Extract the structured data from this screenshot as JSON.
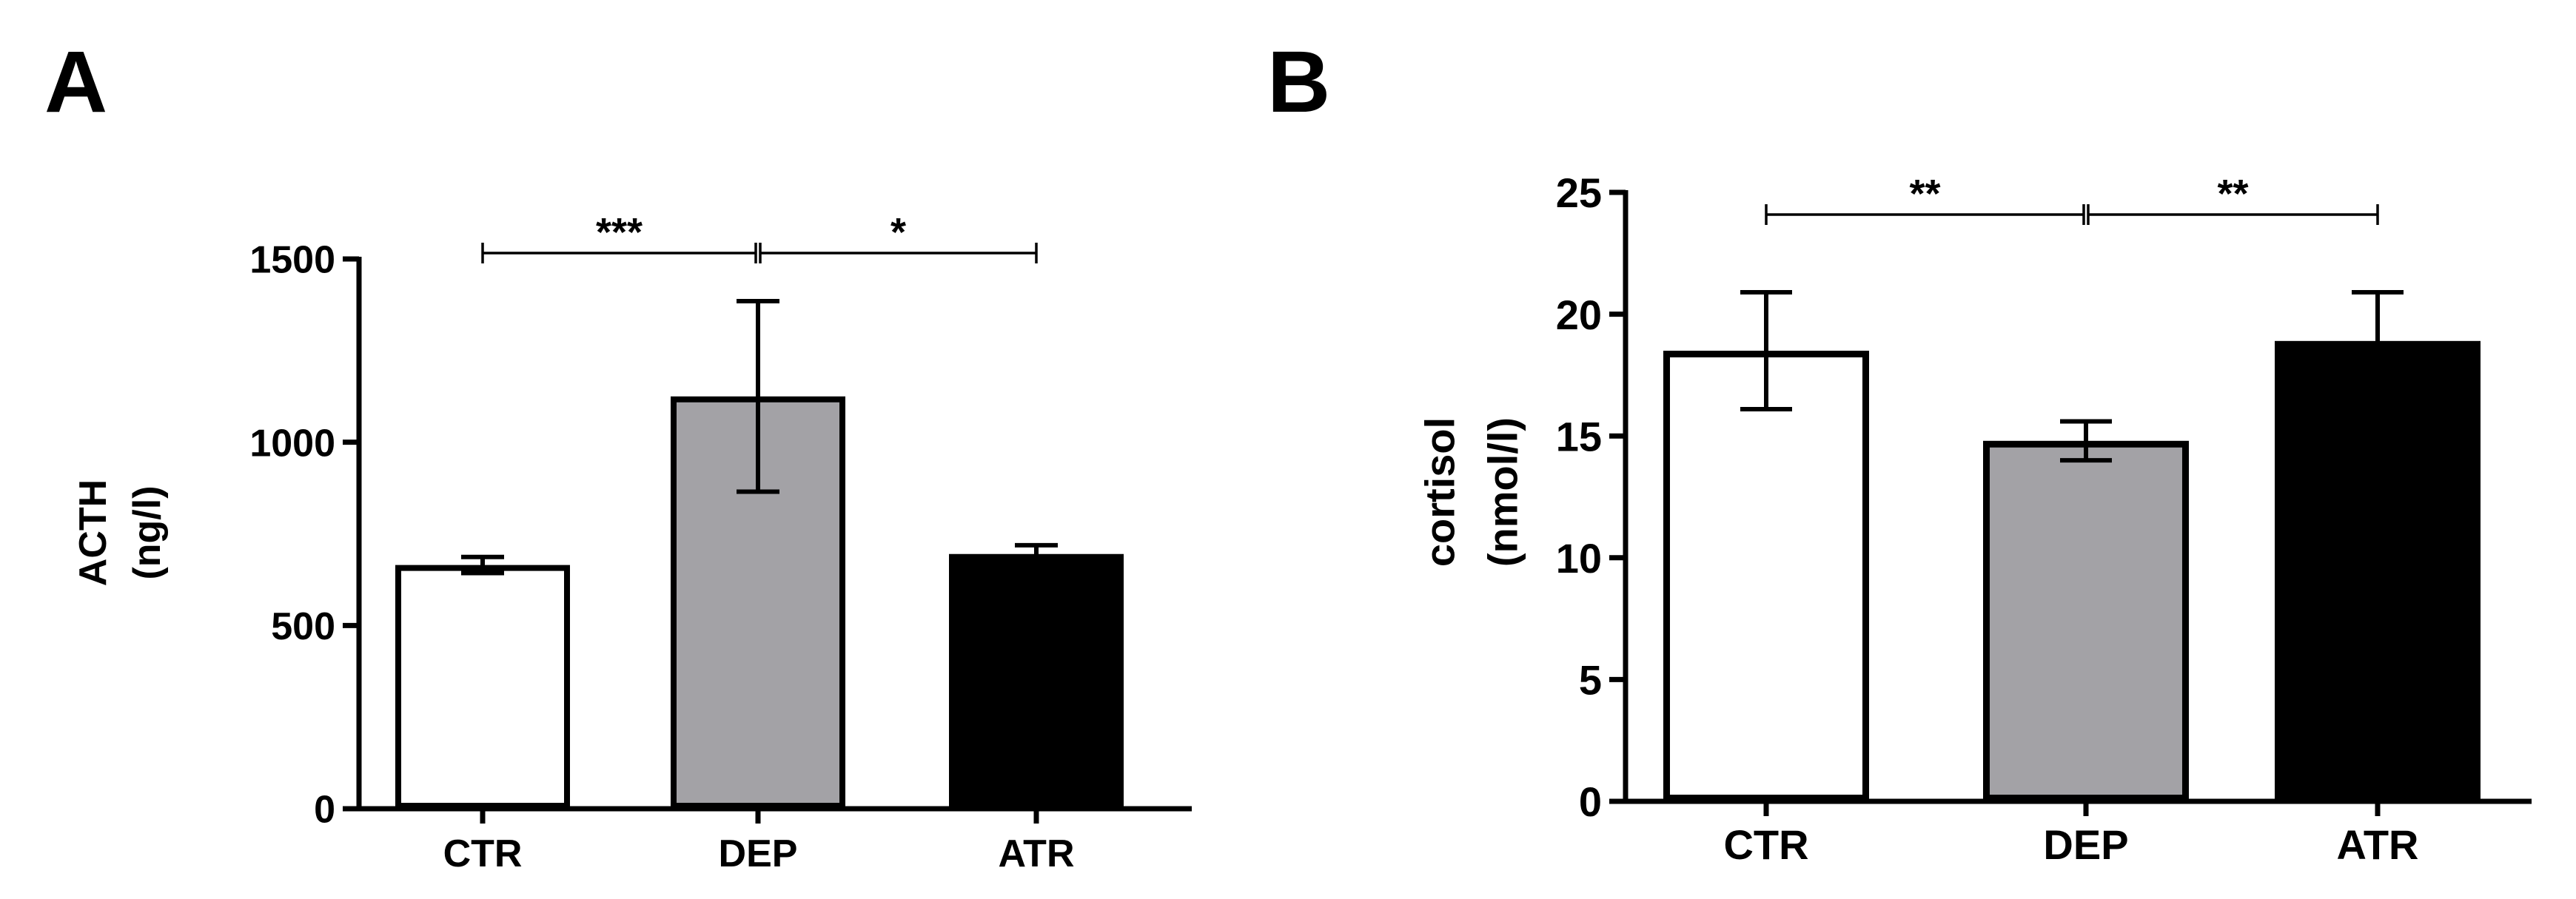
{
  "panels": [
    {
      "letter": "A"
    },
    {
      "letter": "B"
    }
  ],
  "chart_data": [
    {
      "type": "bar",
      "title": "",
      "xlabel": "",
      "ylabel_line1": "ACTH",
      "ylabel_line2": "(ng/l)",
      "categories": [
        "CTR",
        "DEP",
        "ATR"
      ],
      "values": [
        665,
        1125,
        695
      ],
      "errors": [
        22,
        260,
        24
      ],
      "colors": [
        "#ffffff",
        "#a3a2a6",
        "#000000"
      ],
      "ylim": [
        0,
        1500
      ],
      "yticks": [
        0,
        500,
        1000,
        1500
      ],
      "grid": false,
      "significance": [
        {
          "from": 0,
          "to": 1,
          "label": "***"
        },
        {
          "from": 1,
          "to": 2,
          "label": "*"
        }
      ]
    },
    {
      "type": "bar",
      "title": "",
      "xlabel": "",
      "ylabel_line1": "cortisol",
      "ylabel_line2": "(nmol/l)",
      "categories": [
        "CTR",
        "DEP",
        "ATR"
      ],
      "values": [
        18.5,
        14.8,
        18.9
      ],
      "errors": [
        2.4,
        0.8,
        2.0
      ],
      "colors": [
        "#ffffff",
        "#a3a2a6",
        "#000000"
      ],
      "ylim": [
        0,
        25
      ],
      "yticks": [
        0,
        5,
        10,
        15,
        20,
        25
      ],
      "grid": false,
      "significance": [
        {
          "from": 0,
          "to": 1,
          "label": "**"
        },
        {
          "from": 1,
          "to": 2,
          "label": "**"
        }
      ]
    }
  ]
}
